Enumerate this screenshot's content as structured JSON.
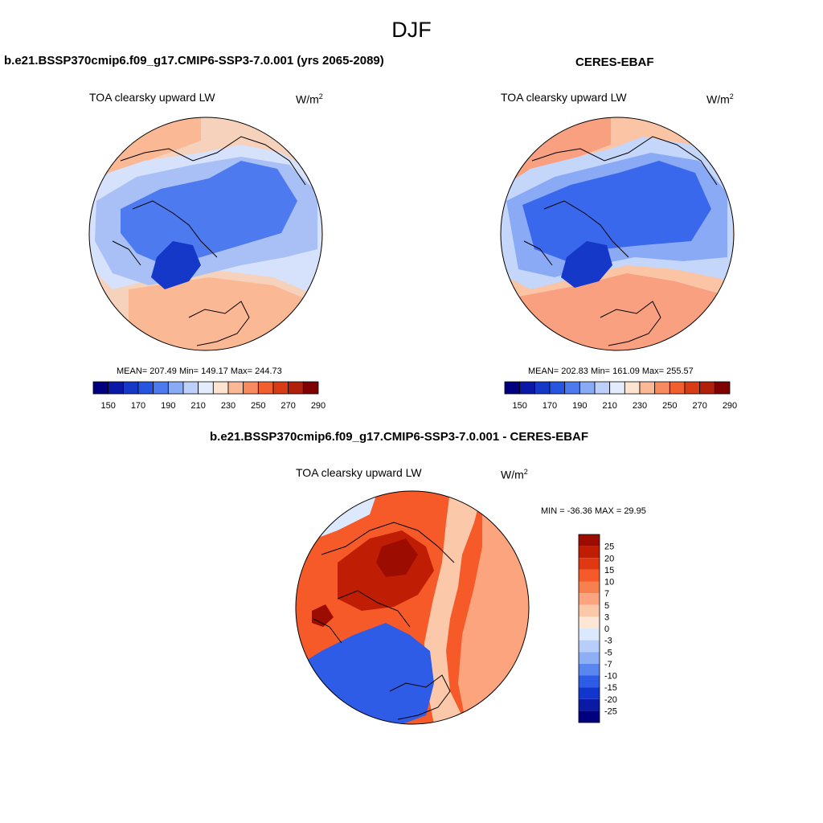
{
  "figure": {
    "season": "DJF"
  },
  "panels": [
    {
      "id": "model",
      "title": "b.e21.BSSP370cmip6.f09_g17.CMIP6-SSP3-7.0.001 (yrs 2065-2089)",
      "variable": "TOA clearsky upward LW",
      "units_base": "W/m",
      "units_exp": "2",
      "stats": "MEAN= 207.49  Min= 149.17  Max= 244.73",
      "colorbar": {
        "labels": [
          "150",
          "170",
          "190",
          "210",
          "230",
          "250",
          "270",
          "290"
        ],
        "colors": [
          "#00007f",
          "#0a18a8",
          "#1638c8",
          "#2656e0",
          "#4e7af0",
          "#8aaaf6",
          "#bcd0fa",
          "#e2ecfc",
          "#fde4d0",
          "#fbb894",
          "#f88a60",
          "#f0602e",
          "#d83c12",
          "#b0200a",
          "#7f0000"
        ]
      },
      "map_colors": {
        "ocean_warm": "#fbb894",
        "ocean_mid": "#f6d2bc",
        "light_blue": "#d6e2fb",
        "mid_blue": "#a8c0f6",
        "blue": "#4e7af0",
        "deep_blue": "#1638c8"
      }
    },
    {
      "id": "obs",
      "title": "CERES-EBAF",
      "variable": "TOA clearsky upward LW",
      "units_base": "W/m",
      "units_exp": "2",
      "stats": "MEAN= 202.83  Min= 161.09  Max= 255.57",
      "colorbar": {
        "labels": [
          "150",
          "170",
          "190",
          "210",
          "230",
          "250",
          "270",
          "290"
        ],
        "colors": [
          "#00007f",
          "#0a18a8",
          "#1638c8",
          "#2656e0",
          "#4e7af0",
          "#8aaaf6",
          "#bcd0fa",
          "#e2ecfc",
          "#fde4d0",
          "#fbb894",
          "#f88a60",
          "#f0602e",
          "#d83c12",
          "#b0200a",
          "#7f0000"
        ]
      },
      "map_colors": {
        "ocean_warm": "#f8a080",
        "ocean_mid": "#fbc4a4",
        "light_blue": "#c4d6fa",
        "mid_blue": "#8aaaf6",
        "blue": "#3a68ec",
        "deep_blue": "#1638c8"
      }
    },
    {
      "id": "diff",
      "title": "b.e21.BSSP370cmip6.f09_g17.CMIP6-SSP3-7.0.001 - CERES-EBAF",
      "variable": "TOA clearsky upward LW",
      "units_base": "W/m",
      "units_exp": "2",
      "stats": "MIN = -36.36 MAX =  29.95",
      "colorbar": {
        "labels": [
          "25",
          "20",
          "15",
          "10",
          "7",
          "5",
          "3",
          "0",
          "-3",
          "-5",
          "-7",
          "-10",
          "-15",
          "-20",
          "-25"
        ],
        "colors": [
          "#9c0c00",
          "#c01e04",
          "#e03810",
          "#f65a28",
          "#f8804e",
          "#fba47e",
          "#fcc8aa",
          "#fde6d6",
          "#dce8fc",
          "#b8cefa",
          "#8eaef6",
          "#5a86f0",
          "#2e5ce6",
          "#1236cc",
          "#0a1aa4",
          "#00007f"
        ]
      },
      "map_colors": {
        "base": "#f65a28",
        "dark": "#c01e04",
        "darkest": "#9c0c00",
        "light": "#fba47e",
        "pale": "#fcc8aa",
        "blue": "#2e5ce6",
        "pale_blue": "#dce8fc"
      }
    }
  ]
}
